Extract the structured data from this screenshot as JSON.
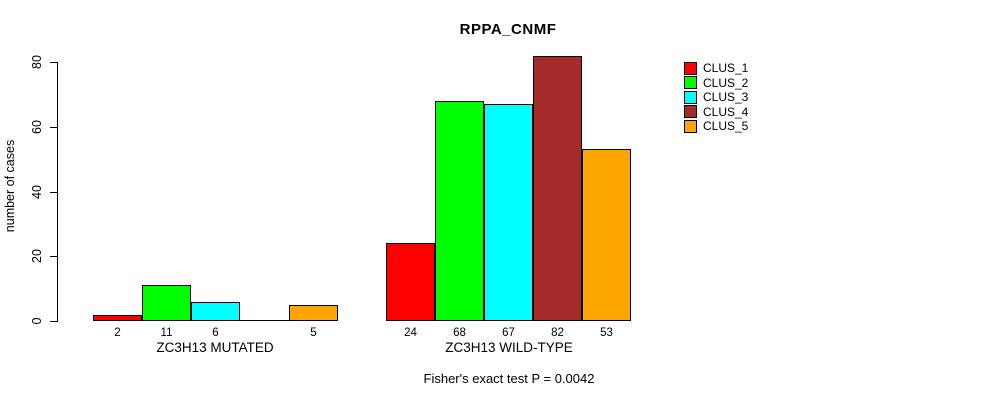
{
  "chart_data": {
    "type": "bar",
    "title": "RPPA_CNMF",
    "xlabel": "",
    "ylabel": "number of cases",
    "annotation": "Fisher's exact test P = 0.0042",
    "categories": [
      "ZC3H13 MUTATED",
      "ZC3H13 WILD-TYPE"
    ],
    "series": [
      {
        "name": "CLUS_1",
        "color": "#ff0000",
        "values": [
          2,
          24
        ]
      },
      {
        "name": "CLUS_2",
        "color": "#00ff00",
        "values": [
          11,
          68
        ]
      },
      {
        "name": "CLUS_3",
        "color": "#00ffff",
        "values": [
          6,
          67
        ]
      },
      {
        "name": "CLUS_4",
        "color": "#a52a2a",
        "values": [
          0,
          82
        ]
      },
      {
        "name": "CLUS_5",
        "color": "#ffa500",
        "values": [
          5,
          53
        ]
      }
    ],
    "yticks": [
      0,
      20,
      40,
      60,
      80
    ],
    "ylim": [
      0,
      80
    ],
    "grid": false,
    "legend_position": "right-outside",
    "bar_value_labels": true,
    "zero_value_labels_hidden": true,
    "bar_border_color": "#000000"
  }
}
